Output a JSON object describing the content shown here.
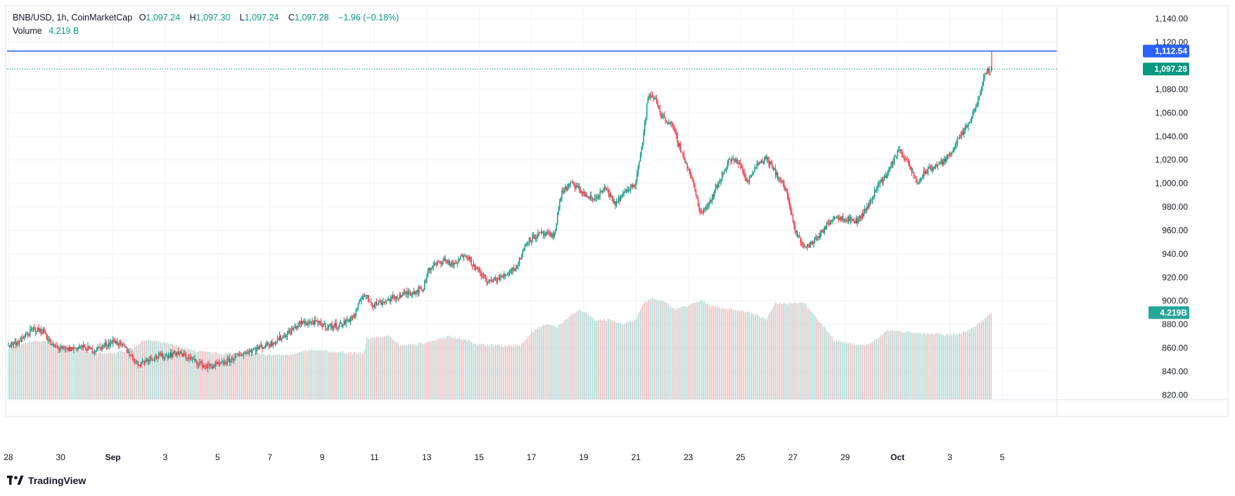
{
  "legend": {
    "symbol": "BNB/USD, 1h, CoinMarketCap",
    "open_label": "O",
    "open_value": "1,097.24",
    "high_label": "H",
    "high_value": "1,097.30",
    "low_label": "L",
    "low_value": "1,097.24",
    "close_label": "C",
    "close_value": "1,097.28",
    "change_value": "−1.96 (−0.18%)",
    "volume_label": "Volume",
    "volume_value": "4.219 B"
  },
  "footer": {
    "brand": "TradingView",
    "logo_icon": "tradingview-logo-icon"
  },
  "colors": {
    "up": "#089981",
    "down": "#f23645",
    "up_volume": "#9fd6cd",
    "down_volume": "#f7aeb4",
    "hline": "#2962ff",
    "price_tag": "#089981",
    "volume_tag": "#26a69a",
    "grid": "#f0f3fa",
    "axis_text": "#131722"
  },
  "chart_data": {
    "type": "candlestick",
    "title": "BNB/USD, 1h, CoinMarketCap",
    "xlabel": "",
    "ylabel": "",
    "interval": "1h",
    "x_range_days": [
      -3.05,
      37.1
    ],
    "x_origin": "Aug 31",
    "ylim": [
      816,
      1150
    ],
    "y_ticks": [
      820,
      840,
      860,
      880,
      900,
      920,
      940,
      960,
      980,
      1000,
      1020,
      1040,
      1060,
      1080,
      1100,
      1120,
      1140
    ],
    "y_tick_labels": [
      "820.00",
      "840.00",
      "860.00",
      "880.00",
      "900.00",
      "920.00",
      "940.00",
      "960.00",
      "980.00",
      "1,000.00",
      "1,020.00",
      "1,040.00",
      "1,060.00",
      "1,080.00",
      "1,100.00",
      "1,120.00",
      "1,140.00"
    ],
    "x_ticks": [
      {
        "day": -3,
        "label": "28"
      },
      {
        "day": -1,
        "label": "30"
      },
      {
        "day": 1,
        "label": "Sep"
      },
      {
        "day": 3,
        "label": "3"
      },
      {
        "day": 5,
        "label": "5"
      },
      {
        "day": 7,
        "label": "7"
      },
      {
        "day": 9,
        "label": "9"
      },
      {
        "day": 11,
        "label": "11"
      },
      {
        "day": 13,
        "label": "13"
      },
      {
        "day": 15,
        "label": "15"
      },
      {
        "day": 17,
        "label": "17"
      },
      {
        "day": 19,
        "label": "19"
      },
      {
        "day": 21,
        "label": "21"
      },
      {
        "day": 23,
        "label": "23"
      },
      {
        "day": 25,
        "label": "25"
      },
      {
        "day": 27,
        "label": "27"
      },
      {
        "day": 29,
        "label": "29"
      },
      {
        "day": 31,
        "label": "Oct"
      },
      {
        "day": 33,
        "label": "3"
      },
      {
        "day": 35,
        "label": "5"
      }
    ],
    "price_keypoints": [
      [
        -3.0,
        862
      ],
      [
        -2.5,
        866
      ],
      [
        -2.0,
        876
      ],
      [
        -1.6,
        874
      ],
      [
        -1.3,
        862
      ],
      [
        -0.8,
        858
      ],
      [
        -0.2,
        861
      ],
      [
        0.3,
        858
      ],
      [
        0.9,
        864
      ],
      [
        1.1,
        866
      ],
      [
        1.5,
        860
      ],
      [
        2.0,
        846
      ],
      [
        2.5,
        852
      ],
      [
        3.0,
        853
      ],
      [
        3.5,
        856
      ],
      [
        4.0,
        851
      ],
      [
        4.6,
        844
      ],
      [
        5.2,
        846
      ],
      [
        5.7,
        852
      ],
      [
        6.2,
        857
      ],
      [
        6.6,
        860
      ],
      [
        7.1,
        864
      ],
      [
        7.7,
        872
      ],
      [
        8.2,
        881
      ],
      [
        8.7,
        882
      ],
      [
        9.3,
        878
      ],
      [
        9.8,
        880
      ],
      [
        10.3,
        888
      ],
      [
        10.6,
        906
      ],
      [
        11.0,
        897
      ],
      [
        11.6,
        901
      ],
      [
        12.2,
        906
      ],
      [
        12.9,
        910
      ],
      [
        13.1,
        927
      ],
      [
        13.7,
        935
      ],
      [
        14.1,
        930
      ],
      [
        14.5,
        941
      ],
      [
        14.9,
        928
      ],
      [
        15.4,
        916
      ],
      [
        15.9,
        920
      ],
      [
        16.5,
        930
      ],
      [
        16.9,
        952
      ],
      [
        17.4,
        957
      ],
      [
        17.9,
        955
      ],
      [
        18.2,
        993
      ],
      [
        18.6,
        1000
      ],
      [
        19.1,
        990
      ],
      [
        19.4,
        986
      ],
      [
        19.9,
        996
      ],
      [
        20.2,
        982
      ],
      [
        20.7,
        994
      ],
      [
        21.0,
        1000
      ],
      [
        21.3,
        1036
      ],
      [
        21.5,
        1074
      ],
      [
        21.8,
        1072
      ],
      [
        22.0,
        1058
      ],
      [
        22.4,
        1050
      ],
      [
        22.9,
        1020
      ],
      [
        23.2,
        1002
      ],
      [
        23.5,
        975
      ],
      [
        23.8,
        982
      ],
      [
        24.2,
        1000
      ],
      [
        24.6,
        1020
      ],
      [
        25.0,
        1018
      ],
      [
        25.3,
        1000
      ],
      [
        25.6,
        1015
      ],
      [
        26.0,
        1022
      ],
      [
        26.5,
        1005
      ],
      [
        26.8,
        993
      ],
      [
        27.1,
        960
      ],
      [
        27.5,
        945
      ],
      [
        27.8,
        950
      ],
      [
        28.2,
        960
      ],
      [
        28.6,
        972
      ],
      [
        29.1,
        970
      ],
      [
        29.5,
        968
      ],
      [
        29.9,
        980
      ],
      [
        30.3,
        999
      ],
      [
        30.7,
        1010
      ],
      [
        31.1,
        1030
      ],
      [
        31.5,
        1014
      ],
      [
        31.8,
        1000
      ],
      [
        32.1,
        1010
      ],
      [
        32.5,
        1015
      ],
      [
        32.9,
        1020
      ],
      [
        33.3,
        1035
      ],
      [
        33.7,
        1048
      ],
      [
        34.0,
        1062
      ],
      [
        34.3,
        1085
      ],
      [
        34.45,
        1096
      ],
      [
        34.6,
        1097.28
      ]
    ],
    "price_lines": [
      {
        "value": 1112.54,
        "label": "1,112.54",
        "style": "solid"
      },
      {
        "value": 1097.28,
        "label": "1,097.28",
        "style": "dotted"
      }
    ],
    "volume_series": {
      "name": "Volume",
      "last_label": "4.219B",
      "keypoints": [
        [
          -3.0,
          860
        ],
        [
          -2.0,
          866
        ],
        [
          -1.2,
          865
        ],
        [
          0.0,
          857
        ],
        [
          0.6,
          855
        ],
        [
          1.2,
          856
        ],
        [
          1.8,
          860
        ],
        [
          2.2,
          867
        ],
        [
          2.8,
          865
        ],
        [
          3.4,
          862
        ],
        [
          4.0,
          858
        ],
        [
          4.6,
          856
        ],
        [
          5.2,
          855
        ],
        [
          6.2,
          855
        ],
        [
          7.0,
          854
        ],
        [
          7.6,
          854
        ],
        [
          8.6,
          858
        ],
        [
          9.4,
          857
        ],
        [
          10.0,
          856
        ],
        [
          10.6,
          855
        ],
        [
          10.7,
          868
        ],
        [
          11.6,
          870
        ],
        [
          12.0,
          862
        ],
        [
          12.6,
          863
        ],
        [
          13.2,
          866
        ],
        [
          13.8,
          870
        ],
        [
          14.6,
          866
        ],
        [
          15.0,
          863
        ],
        [
          15.8,
          862
        ],
        [
          16.6,
          862
        ],
        [
          17.0,
          873
        ],
        [
          17.5,
          880
        ],
        [
          18.0,
          878
        ],
        [
          18.5,
          888
        ],
        [
          18.9,
          893
        ],
        [
          19.4,
          884
        ],
        [
          19.9,
          884
        ],
        [
          20.5,
          880
        ],
        [
          21.0,
          885
        ],
        [
          21.3,
          898
        ],
        [
          21.6,
          902
        ],
        [
          22.0,
          900
        ],
        [
          22.5,
          893
        ],
        [
          23.0,
          896
        ],
        [
          23.5,
          900
        ],
        [
          23.9,
          896
        ],
        [
          24.5,
          893
        ],
        [
          25.0,
          892
        ],
        [
          25.6,
          888
        ],
        [
          26.0,
          884
        ],
        [
          26.3,
          898
        ],
        [
          26.9,
          898
        ],
        [
          27.4,
          899
        ],
        [
          27.8,
          888
        ],
        [
          28.3,
          875
        ],
        [
          28.6,
          866
        ],
        [
          29.4,
          863
        ],
        [
          29.8,
          862
        ],
        [
          30.2,
          867
        ],
        [
          30.6,
          875
        ],
        [
          31.2,
          874
        ],
        [
          31.8,
          872
        ],
        [
          32.4,
          872
        ],
        [
          33.0,
          871
        ],
        [
          33.4,
          872
        ],
        [
          33.9,
          877
        ],
        [
          34.3,
          884
        ],
        [
          34.6,
          890
        ]
      ]
    }
  }
}
